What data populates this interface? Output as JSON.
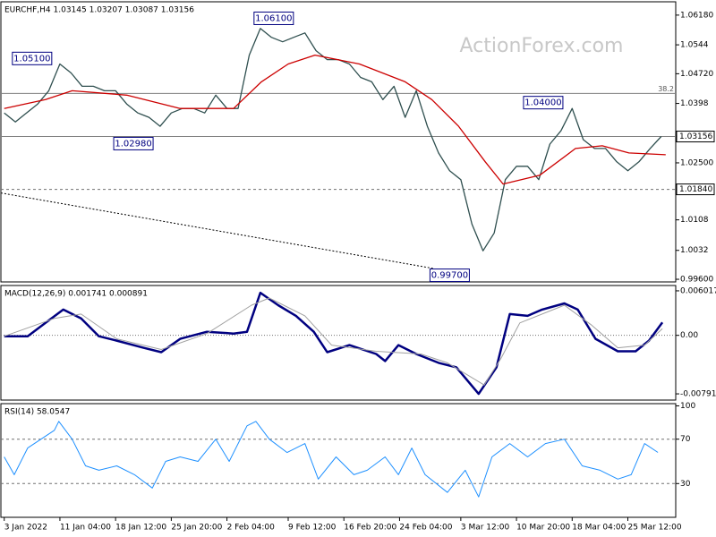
{
  "chart_data": [
    {
      "type": "line",
      "title": "EURCHF,H4  1.03145 1.03207 1.03087 1.03156",
      "watermark": "ActionForex.com",
      "xlim": [
        -0.3,
        60.3
      ],
      "x": [
        0,
        1,
        2,
        3,
        4,
        5,
        6,
        7,
        8,
        9,
        10,
        11,
        12,
        13,
        14,
        15,
        16,
        17,
        18,
        19,
        20,
        21,
        22,
        23,
        24,
        25,
        26,
        27,
        28,
        29,
        30,
        31,
        32,
        33,
        34,
        35,
        36,
        37,
        38,
        39,
        40,
        41,
        42,
        43,
        44,
        45,
        46,
        47,
        48,
        49,
        50,
        51,
        52,
        53,
        54,
        55,
        56,
        57,
        58,
        59
      ],
      "series": [
        {
          "color": "#2f4f4f",
          "values": [
            1.03743,
            1.03521,
            1.03743,
            1.03965,
            1.04297,
            1.04962,
            1.0474,
            1.04408,
            1.04408,
            1.04297,
            1.04297,
            1.03965,
            1.03743,
            1.03633,
            1.03411,
            1.03743,
            1.03854,
            1.03854,
            1.03743,
            1.04186,
            1.03854,
            1.03854,
            1.05183,
            1.05848,
            1.05626,
            1.05515,
            1.05626,
            1.05737,
            1.05294,
            1.05072,
            1.05072,
            1.04962,
            1.04629,
            1.04519,
            1.04076,
            1.04408,
            1.03633,
            1.04297,
            1.03411,
            1.02747,
            1.02304,
            1.02082,
            1.00975,
            1.0031,
            1.00753,
            1.02082,
            1.02414,
            1.02414,
            1.02082,
            1.02968,
            1.033,
            1.03854,
            1.03079,
            1.02857,
            1.02857,
            1.02525,
            1.02304,
            1.02525,
            1.02857,
            1.03156
          ]
        },
        {
          "color": "#cc0000",
          "x": [
            0,
            3.7,
            6.1,
            11,
            15.8,
            20.6,
            23.1,
            25.5,
            27.9,
            31.9,
            36,
            38.4,
            40.8,
            43.2,
            44.8,
            48.1,
            51.3,
            53.7,
            56.1,
            59.4
          ],
          "values": [
            1.03854,
            1.04076,
            1.04297,
            1.04186,
            1.03854,
            1.03854,
            1.04519,
            1.04962,
            1.05183,
            1.04962,
            1.04519,
            1.04076,
            1.03411,
            1.02525,
            1.01972,
            1.02193,
            1.02857,
            1.02924,
            1.02747,
            1.02703
          ]
        }
      ],
      "ylim": [
        0.99534,
        1.06512
      ],
      "yticks": [
        {
          "value": 1.0618,
          "label": "1.06180"
        },
        1.0544,
        {
          "value": 1.0472,
          "label": "1.04720"
        },
        1.0398,
        {
          "value": 1.025,
          "label": "1.02500"
        },
        1.0108,
        1.0032,
        {
          "value": 0.996,
          "label": "0.99600"
        }
      ],
      "hlines": [
        {
          "value": 1.0423,
          "label": "38.2",
          "style": "solid"
        },
        {
          "value": 1.03156,
          "label": "1.03156",
          "style": "solid",
          "boxed": true
        },
        {
          "value": 1.0184,
          "label": "1.01840",
          "style": "dashed",
          "boxed": true
        }
      ],
      "trendline": {
        "x": [
          -0.3,
          38.6
        ],
        "values": [
          1.0175,
          0.99867
        ]
      },
      "annotations": [
        {
          "label": "1.05100",
          "x": 2.5,
          "value": 1.051
        },
        {
          "label": "1.02980",
          "x": 11.6,
          "value": 1.0298
        },
        {
          "label": "1.06100",
          "x": 24.2,
          "value": 1.061
        },
        {
          "label": "0.99700",
          "x": 40,
          "value": 0.997
        },
        {
          "label": "1.04000",
          "x": 48.4,
          "value": 1.04
        }
      ]
    },
    {
      "type": "line",
      "title": "MACD(12,26,9) 0.001741 0.000891",
      "xlim": [
        -0.3,
        60.3
      ],
      "series": [
        {
          "color": "#000080",
          "width": 2.5,
          "x": [
            0,
            2.1,
            3.7,
            5.3,
            6.9,
            8.5,
            10.1,
            12.5,
            14.1,
            15.8,
            18.2,
            20.6,
            21.8,
            23,
            24.6,
            26.2,
            27.8,
            29,
            31,
            33.4,
            34.2,
            35.4,
            37,
            39,
            40.6,
            42.6,
            44.2,
            45.4,
            47,
            48.3,
            50.3,
            51.5,
            53.1,
            55.1,
            56.7,
            57.9,
            59.1
          ],
          "values": [
            -0.00012,
            -0.00012,
            0.00168,
            0.00348,
            0.00228,
            -0.00012,
            -0.00072,
            -0.00168,
            -0.00228,
            -0.00048,
            0.00048,
            0.00024,
            0.00048,
            0.00576,
            0.00408,
            0.00264,
            0.00048,
            -0.00228,
            -0.00132,
            -0.00252,
            -0.00348,
            -0.00132,
            -0.00252,
            -0.00372,
            -0.00432,
            -0.00792,
            -0.00432,
            0.00288,
            0.00264,
            0.00348,
            0.00432,
            0.00348,
            -0.00048,
            -0.00216,
            -0.00216,
            -0.00072,
            0.001741
          ]
        },
        {
          "color": "#a0a0a0",
          "width": 1,
          "x": [
            0,
            4.5,
            6.9,
            10.1,
            14.1,
            18.2,
            22.2,
            23.8,
            27,
            29.4,
            33.4,
            37.4,
            39.8,
            43.1,
            44.6,
            46.3,
            50.3,
            52.7,
            55.1,
            57.5,
            59.1
          ],
          "values": [
            -0.00012,
            0.00228,
            0.00288,
            -0.00048,
            -0.00192,
            0.00024,
            0.00408,
            0.00504,
            0.00264,
            -0.00132,
            -0.00216,
            -0.00252,
            -0.00372,
            -0.00672,
            -0.00312,
            0.00168,
            0.00408,
            0.00144,
            -0.00168,
            -0.00132,
            0.000891
          ]
        }
      ],
      "ylim": [
        -0.008751,
        0.006737
      ],
      "yticks": [
        0.006017,
        {
          "value": 0,
          "label": "0.00"
        },
        -0.007911
      ],
      "hlines": [
        {
          "value": 0,
          "style": "dotted"
        }
      ]
    },
    {
      "type": "line",
      "title": "RSI(14) 58.0547",
      "xlim": [
        -0.3,
        60.3
      ],
      "series": [
        {
          "color": "#1e90ff",
          "width": 1,
          "x": [
            0,
            0.9,
            2.1,
            3.3,
            4.5,
            4.9,
            6.1,
            7.3,
            8.5,
            10.1,
            11.7,
            13.3,
            14.5,
            15.8,
            17.4,
            19,
            20.2,
            21.8,
            22.6,
            23.8,
            25.4,
            27,
            28.2,
            29.8,
            31.4,
            32.6,
            34.2,
            35.4,
            36.6,
            37.8,
            39.8,
            41.4,
            42.6,
            43.8,
            45.4,
            47,
            48.6,
            50.3,
            51.9,
            53.5,
            55.1,
            56.3,
            57.5,
            58.7
          ],
          "values": [
            54,
            38,
            62,
            70,
            78,
            86,
            70,
            46,
            42,
            46,
            38,
            26,
            50,
            54,
            50,
            70,
            50,
            82,
            86,
            70,
            58,
            66,
            34,
            54,
            38,
            42,
            54,
            38,
            62,
            38,
            22,
            42,
            18,
            54,
            66,
            54,
            66,
            70,
            46,
            42,
            34,
            38,
            66,
            58.0547
          ]
        }
      ],
      "ylim": [
        -0.4,
        102
      ],
      "yticks": [
        100,
        70,
        30
      ],
      "hlines": [
        {
          "value": 70,
          "style": "dashed"
        },
        {
          "value": 30,
          "style": "dashed"
        }
      ],
      "xticks": [
        {
          "value": 0,
          "label": "3 Jan 2022"
        },
        {
          "value": 5,
          "label": "11 Jan 04:00"
        },
        {
          "value": 10,
          "label": "18 Jan 12:00"
        },
        {
          "value": 15,
          "label": "25 Jan 20:00"
        },
        {
          "value": 20,
          "label": "2 Feb 04:00"
        },
        {
          "value": 25.5,
          "label": "9 Feb 12:00"
        },
        {
          "value": 30.5,
          "label": "16 Feb 20:00"
        },
        {
          "value": 35.5,
          "label": "24 Feb 04:00"
        },
        {
          "value": 41,
          "label": "3 Mar 12:00"
        },
        {
          "value": 46,
          "label": "10 Mar 20:00"
        },
        {
          "value": 51,
          "label": "18 Mar 04:00"
        },
        {
          "value": 56,
          "label": "25 Mar 12:00"
        }
      ]
    }
  ]
}
